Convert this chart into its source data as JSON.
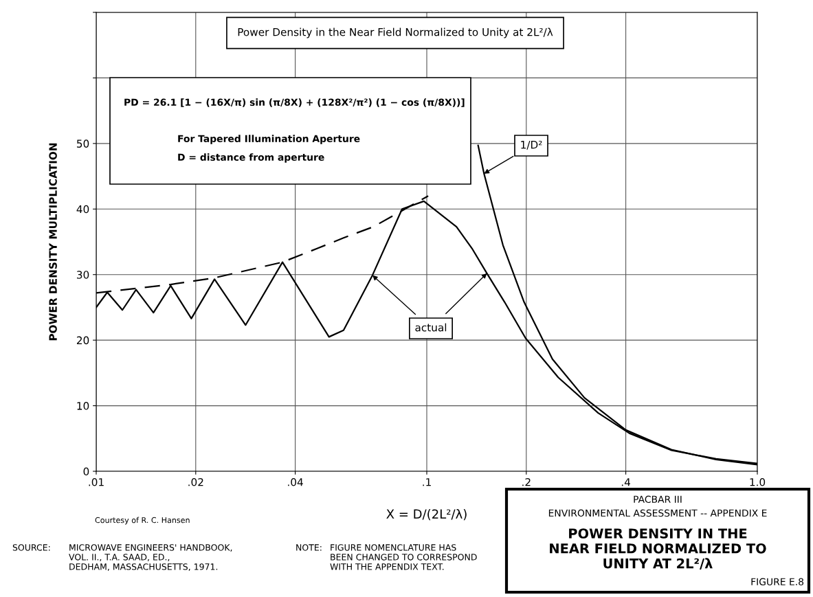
{
  "chart_data": {
    "type": "line",
    "title": "Power Density in the Near Field Normalized to Unity at 2L²/λ",
    "xlabel": "X = D/(2L²/λ)",
    "ylabel": "POWER DENSITY MULTIPLICATION",
    "log": "x",
    "xlim": [
      0.01,
      1.0
    ],
    "xticks": [
      {
        "value": 0.01,
        "label": ".01"
      },
      {
        "value": 0.02,
        "label": ".02"
      },
      {
        "value": 0.04,
        "label": ".04"
      },
      {
        "value": 0.1,
        "label": ".1"
      },
      {
        "value": 0.2,
        "label": ".2"
      },
      {
        "value": 0.4,
        "label": ".4"
      },
      {
        "value": 1.0,
        "label": "1.0"
      }
    ],
    "ylim": [
      0,
      70
    ],
    "yticks": [
      0,
      10,
      20,
      30,
      40,
      50,
      {
        "value": 60,
        "label": null
      },
      {
        "value": 70,
        "label": null
      }
    ],
    "grid": true,
    "legend": false,
    "marker": "none",
    "series": [
      {
        "name": "actual",
        "color": "#000000",
        "line_style": "solid",
        "x": [
          0.01,
          0.0108,
          0.012,
          0.0132,
          0.0149,
          0.0168,
          0.0194,
          0.0228,
          0.0283,
          0.0366,
          0.0506,
          0.056,
          0.0685,
          0.0842,
          0.098,
          0.123,
          0.137,
          0.152,
          0.172,
          0.199,
          0.25,
          0.33,
          0.41,
          0.55,
          0.75,
          1.0
        ],
        "values": [
          25.0,
          27.3,
          24.6,
          27.7,
          24.2,
          28.3,
          23.3,
          29.3,
          22.3,
          31.9,
          20.5,
          21.5,
          29.9,
          40.0,
          41.2,
          37.3,
          34.0,
          30.2,
          25.8,
          20.3,
          14.3,
          8.9,
          5.8,
          3.2,
          1.9,
          1.2
        ]
      },
      {
        "name": "1/D²",
        "color": "#000000",
        "line_style": "solid",
        "x": [
          0.143,
          0.149,
          0.17,
          0.197,
          0.24,
          0.3,
          0.4,
          0.55,
          0.75,
          1.0
        ],
        "values": [
          49.7,
          45.4,
          34.5,
          25.8,
          17.1,
          11.2,
          6.3,
          3.3,
          1.8,
          1.0
        ]
      },
      {
        "color": "#000000",
        "line_style": "dashed",
        "x": [
          0.01,
          0.0132,
          0.0168,
          0.0228,
          0.0366,
          0.0467,
          0.056,
          0.069,
          0.101
        ],
        "values": [
          27.2,
          27.9,
          28.5,
          29.5,
          31.9,
          34.0,
          35.6,
          37.3,
          42.0
        ]
      }
    ],
    "annotations": [
      "PD = 26.1 [1 − (16X/π) sin (π/8X) + (128X²/π²) (1 − cos (π/8X))]",
      "For Tapered Illumination Aperture",
      "D = distance from aperture",
      "Courtesy of R. C. Hansen",
      "SOURCE:",
      "MICROWAVE ENGINEERS' HANDBOOK,\nVOL. II., T.A. SAAD, ED.,\nDEDHAM, MASSACHUSETTS, 1971.",
      "NOTE:",
      "FIGURE NOMENCLATURE HAS\nBEEN CHANGED TO CORRESPOND\nWITH THE APPENDIX TEXT.",
      "PACBAR III",
      "ENVIRONMENTAL ASSESSMENT -- APPENDIX E",
      "POWER DENSITY IN THE\nNEAR FIELD NORMALIZED TO\nUNITY AT 2L²/λ",
      "FIGURE E.8"
    ]
  }
}
